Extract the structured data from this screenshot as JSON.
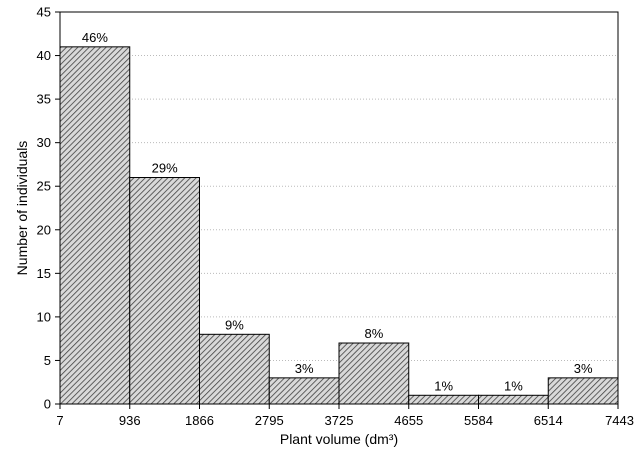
{
  "chart_data": {
    "type": "bar",
    "histogram": true,
    "bin_edges": [
      7,
      936,
      1866,
      2795,
      3725,
      4655,
      5584,
      6514,
      7443
    ],
    "x_tick_labels": [
      "7",
      "936",
      "1866",
      "2795",
      "3725",
      "4655",
      "5584",
      "6514",
      "7443"
    ],
    "values": [
      41,
      26,
      8,
      3,
      7,
      1,
      1,
      3
    ],
    "data_labels": [
      "46%",
      "29%",
      "9%",
      "3%",
      "8%",
      "1%",
      "1%",
      "3%"
    ],
    "xlabel": "Plant volume (dm³)",
    "ylabel": "Number of individuals",
    "ylim": [
      0,
      45
    ],
    "y_ticks": [
      0,
      5,
      10,
      15,
      20,
      25,
      30,
      35,
      40,
      45
    ],
    "grid": "horizontal dotted",
    "bar_fill": "diagonal hatch",
    "colors": {
      "bar_fill": "#d9d9d9",
      "hatch": "#404040",
      "bar_edge": "#000000",
      "grid": "#bbbbbb"
    }
  }
}
